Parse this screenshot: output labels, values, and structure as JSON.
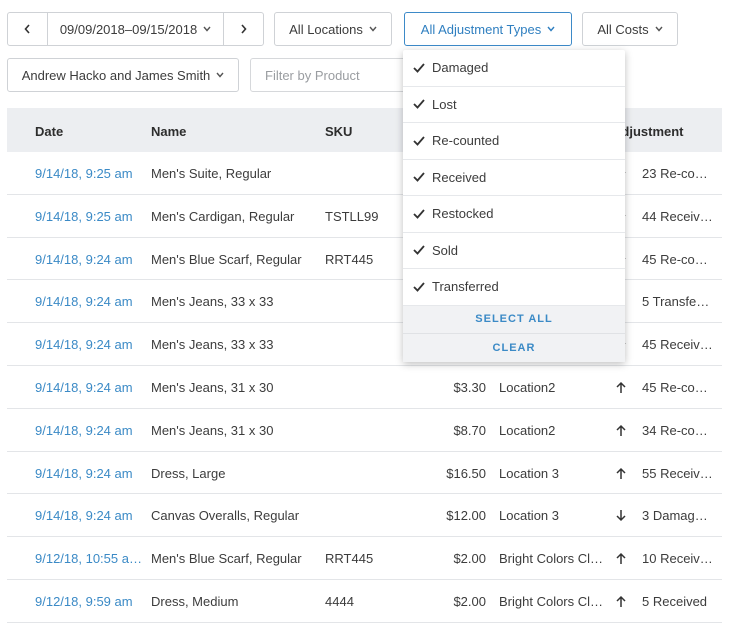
{
  "toolbar": {
    "date_range": "09/09/2018–09/15/2018",
    "locations": "All Locations",
    "adjustment_types": "All Adjustment Types",
    "costs": "All Costs",
    "employees": "Andrew Hacko and James Smith",
    "product_filter": "Filter by Product"
  },
  "table": {
    "headers": {
      "date": "Date",
      "name": "Name",
      "sku": "SKU",
      "adjustment": "Adjustment"
    },
    "rows": [
      {
        "date": "9/14/18, 9:25 am",
        "name": "Men's Suite, Regular",
        "adjustment": "23 Re-co…"
      },
      {
        "date": "9/14/18, 9:25 am",
        "name": "Men's Cardigan, Regular",
        "sku": "TSTLL99",
        "adjustment": "44 Receiv…"
      },
      {
        "date": "9/14/18, 9:24 am",
        "name": "Men's Blue Scarf, Regular",
        "sku": "RRT445",
        "adjustment": "45 Re-co…"
      },
      {
        "date": "9/14/18, 9:24 am",
        "name": "Men's Jeans, 33 x 33",
        "adjustment": "5 Transfe…"
      },
      {
        "date": "9/14/18, 9:24 am",
        "name": "Men's Jeans, 33 x 33",
        "adjustment": "45 Receiv…"
      },
      {
        "date": "9/14/18, 9:24 am",
        "name": "Men's Jeans, 31 x 30",
        "cost": "$3.30",
        "location": "Location2",
        "adjustment": "45 Re-co…"
      },
      {
        "date": "9/14/18, 9:24 am",
        "name": "Men's Jeans, 31 x 30",
        "cost": "$8.70",
        "location": "Location2",
        "adjustment": "34 Re-co…"
      },
      {
        "date": "9/14/18, 9:24 am",
        "name": "Dress, Large",
        "cost": "$16.50",
        "location": "Location 3",
        "adjustment": "55 Receiv…"
      },
      {
        "date": "9/14/18, 9:24 am",
        "name": "Canvas Overalls, Regular",
        "cost": "$12.00",
        "location": "Location 3",
        "adjustment": "3 Damag…"
      },
      {
        "date": "9/12/18, 10:55 a…",
        "name": "Men's Blue Scarf, Regular",
        "sku": "RRT445",
        "cost": "$2.00",
        "location": "Bright Colors Cl…",
        "adjustment": "10 Receiv…"
      },
      {
        "date": "9/12/18, 9:59 am",
        "name": "Dress, Medium",
        "sku": "4444",
        "cost": "$2.00",
        "location": "Bright Colors Cl…",
        "adjustment": "5 Received"
      }
    ]
  },
  "dropdown": {
    "options": [
      "Damaged",
      "Lost",
      "Re-counted",
      "Received",
      "Restocked",
      "Sold",
      "Transferred"
    ],
    "select_all": "SELECT ALL",
    "clear": "CLEAR"
  }
}
